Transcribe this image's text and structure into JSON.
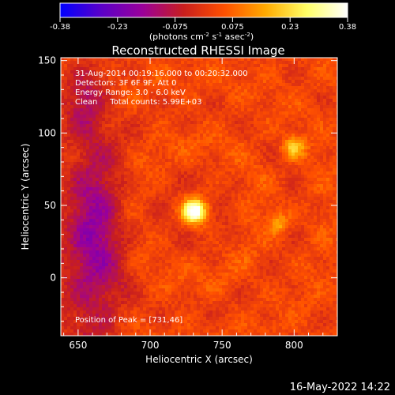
{
  "colorbar": {
    "ticks": [
      "-0.38",
      "-0.23",
      "-0.075",
      "0.075",
      "0.23",
      "0.38"
    ],
    "unit_text": "(photons cm",
    "unit_sup1": "-2",
    "unit_mid": " s",
    "unit_sup2": "-1",
    "unit_mid2": " asec",
    "unit_sup3": "-2",
    "unit_end": ")",
    "min": -0.38,
    "max": 0.38,
    "colors": [
      "#0000ff",
      "#5a00c8",
      "#9a009a",
      "#c81e1e",
      "#ff5000",
      "#ffaa00",
      "#ffff66",
      "#ffffff"
    ]
  },
  "chart_data": {
    "type": "heatmap",
    "title": "Reconstructed RHESSI Image",
    "xlabel": "Heliocentric X (arcsec)",
    "ylabel": "Heliocentric Y (arcsec)",
    "xlim": [
      638,
      830
    ],
    "ylim": [
      -40,
      152
    ],
    "xticks": [
      "650",
      "700",
      "750",
      "800"
    ],
    "yticks": [
      "150",
      "100",
      "50",
      "0"
    ],
    "peak": {
      "x": 731,
      "y": 46,
      "value": 0.38
    },
    "secondary_sources": [
      {
        "x": 800,
        "y": 90,
        "value": 0.23
      },
      {
        "x": 790,
        "y": 38,
        "value": 0.18
      }
    ],
    "info_lines": [
      "31-Aug-2014 00:19:16.000 to 00:20:32.000",
      "Detectors: 3F 6F 9F, Att 0",
      "Energy Range: 3.0 - 6.0 keV",
      "Clean     Total counts: 5.99E+03"
    ],
    "peak_label": "Position of Peak = [731,46]"
  },
  "footer": {
    "timestamp": "16-May-2022 14:22"
  }
}
